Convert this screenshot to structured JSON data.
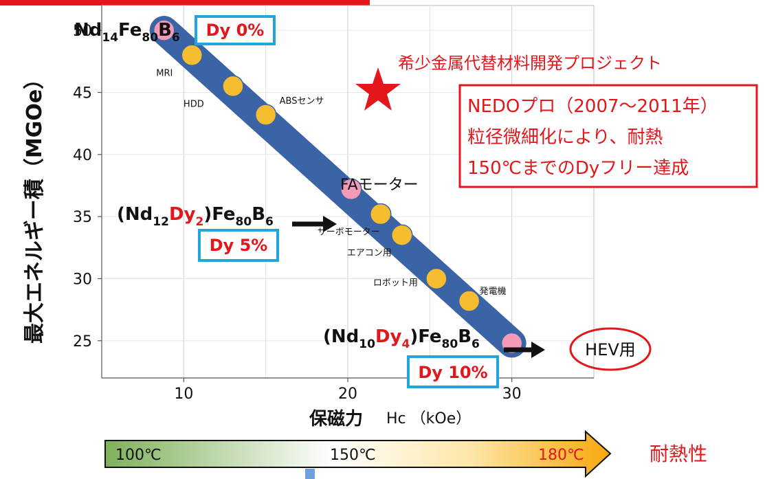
{
  "chart_data": {
    "type": "scatter",
    "xlabel_main": "保磁力",
    "xlabel_sub": "Hc （kOe）",
    "ylabel": "最大エネルギー積（MGOe）",
    "xlim": [
      5,
      35
    ],
    "ylim": [
      22,
      52
    ],
    "x_ticks": [
      10,
      20,
      30
    ],
    "y_ticks": [
      25,
      30,
      35,
      40,
      45,
      50
    ],
    "grid": true,
    "points": [
      {
        "x": 8.8,
        "y": 50.0,
        "kind": "pink"
      },
      {
        "x": 10.5,
        "y": 48.0,
        "kind": "yellow",
        "label": "MRI"
      },
      {
        "x": 13.0,
        "y": 45.5,
        "kind": "yellow",
        "label": "HDD"
      },
      {
        "x": 15.0,
        "y": 43.2,
        "kind": "yellow",
        "label": "ABSセンサ"
      },
      {
        "x": 20.2,
        "y": 37.2,
        "kind": "pink"
      },
      {
        "x": 22.0,
        "y": 35.2,
        "kind": "yellow",
        "label": "サーボモーター"
      },
      {
        "x": 23.3,
        "y": 33.5,
        "kind": "yellow",
        "label": "エアコン用"
      },
      {
        "x": 25.4,
        "y": 30.0,
        "kind": "yellow",
        "label": "ロボット用"
      },
      {
        "x": 27.4,
        "y": 28.2,
        "kind": "yellow",
        "label": "発電機"
      },
      {
        "x": 30.0,
        "y": 24.8,
        "kind": "pink"
      }
    ],
    "band": {
      "x0": 8.8,
      "y0": 50.0,
      "x1": 30.0,
      "y1": 24.8
    },
    "annotations": {
      "fa_motor": "FAモーター",
      "hev": "HEV用",
      "project": "希少金属代替材料開発プロジェクト",
      "nedo_lines": [
        "NEDOプロ（2007～2011年）",
        "粒径微細化により、耐熱",
        "150℃までのDyフリー達成"
      ]
    },
    "compositions": {
      "c1": {
        "nd_sub": "14",
        "fe_sub": "80",
        "b_sub": "6"
      },
      "c2": {
        "nd_sub": "12",
        "dy_sub": "2",
        "fe_sub": "80",
        "b_sub": "6"
      },
      "c3": {
        "nd_sub": "10",
        "dy_sub": "4",
        "fe_sub": "80",
        "b_sub": "6"
      }
    },
    "dy_boxes": {
      "b1": "Dy 0%",
      "b2": "Dy 5%",
      "b3": "Dy 10%"
    }
  },
  "heat_bar": {
    "labels": [
      "100℃",
      "150℃",
      "180℃"
    ],
    "title": "耐熱性"
  },
  "colors": {
    "band": "#3a64a6",
    "pink": "#f39ab9",
    "yellow": "#f6bd30",
    "red": "#e3161b",
    "cyan": "#1fa6de"
  }
}
